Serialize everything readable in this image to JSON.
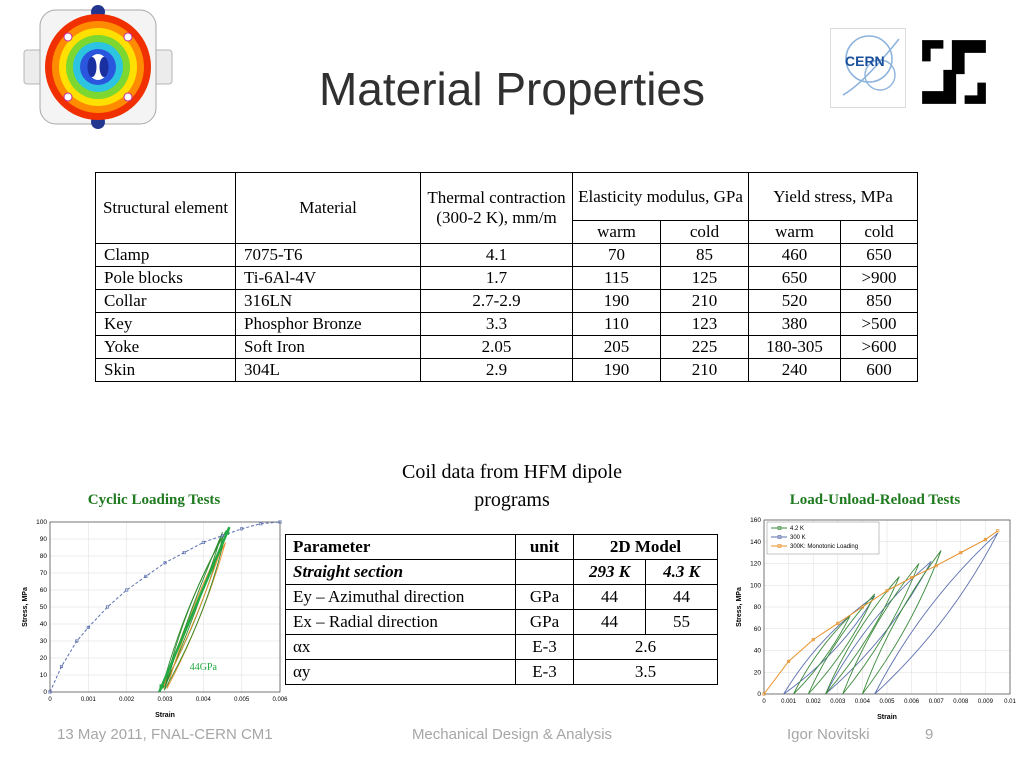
{
  "slide": {
    "title": "Material Properties",
    "coil_note": "Coil data from HFM dipole programs",
    "footer": {
      "left": "13 May 2011, FNAL-CERN CM1",
      "center": "Mechanical Design & Analysis",
      "author": "Igor Novitski",
      "page": "9"
    },
    "logos": {
      "cern_label": "CERN"
    },
    "colors": {
      "chart_title_green": "#1e7a1e",
      "footer_gray": "#a6a6a6",
      "arrow_green": "#22aa44"
    }
  },
  "materials_table": {
    "header": {
      "structural_element": "Structural element",
      "material": "Material",
      "thermal": "Thermal contraction (300-2 K), mm/m",
      "elasticity": "Elasticity modulus, GPa",
      "yield": "Yield stress, MPa"
    },
    "subheader": [
      "warm",
      "cold",
      "warm",
      "cold"
    ],
    "rows": [
      [
        "Clamp",
        "7075-T6",
        "4.1",
        "70",
        "85",
        "460",
        "650"
      ],
      [
        "Pole blocks",
        "Ti-6Al-4V",
        "1.7",
        "115",
        "125",
        "650",
        ">900"
      ],
      [
        "Collar",
        "316LN",
        "2.7-2.9",
        "190",
        "210",
        "520",
        "850"
      ],
      [
        "Key",
        "Phosphor Bronze",
        "3.3",
        "110",
        "123",
        "380",
        ">500"
      ],
      [
        "Yoke",
        "Soft Iron",
        "2.05",
        "205",
        "225",
        "180-305",
        ">600"
      ],
      [
        "Skin",
        "304L",
        "2.9",
        "190",
        "210",
        "240",
        "600"
      ]
    ]
  },
  "parameter_table": {
    "headers": [
      "Parameter",
      "unit",
      "2D Model"
    ],
    "section_label": "Straight section",
    "temp_columns": [
      "293 K",
      "4.3 K"
    ],
    "rows": [
      {
        "param": "Ey – Azimuthal direction",
        "unit": "GPa",
        "v1": "44",
        "v2": "44"
      },
      {
        "param": "Ex – Radial direction",
        "unit": "GPa",
        "v1": "44",
        "v2": "55"
      },
      {
        "param": "αx",
        "unit": "E-3",
        "v1": "2.6"
      },
      {
        "param": "αy",
        "unit": "E-3",
        "v1": "3.5"
      }
    ]
  },
  "chart_data": [
    {
      "type": "line",
      "title": "Cyclic Loading Tests",
      "xlabel": "Strain",
      "ylabel": "Stress, MPa",
      "xlim": [
        0,
        0.006
      ],
      "ylim": [
        0,
        100
      ],
      "xtick_step": 0.001,
      "ytick_step": 10,
      "grid": true,
      "series": [
        {
          "name": "loading curve",
          "color": "#5b6fae",
          "dash": true,
          "marker": true,
          "x": [
            0,
            0.0003,
            0.0007,
            0.001,
            0.0015,
            0.002,
            0.0025,
            0.003,
            0.0035,
            0.004,
            0.0045,
            0.005,
            0.0055,
            0.006
          ],
          "y": [
            0,
            15,
            30,
            38,
            50,
            60,
            68,
            76,
            82,
            88,
            92,
            96,
            99,
            100
          ]
        }
      ],
      "loops": [
        {
          "color": "#2e8b2e",
          "from": [
            0.00292,
            2
          ],
          "to": [
            0.00452,
            92
          ],
          "w": 10
        },
        {
          "color": "#e8922a",
          "from": [
            0.00295,
            2
          ],
          "to": [
            0.00455,
            90
          ],
          "w": 6
        },
        {
          "color": "#2e8b2e",
          "from": [
            0.003,
            3
          ],
          "to": [
            0.0045,
            94
          ],
          "w": 4
        },
        {
          "color": "#e8922a",
          "from": [
            0.00305,
            2
          ],
          "to": [
            0.00458,
            88
          ],
          "w": 8
        },
        {
          "color": "#2e8b2e",
          "from": [
            0.00298,
            1
          ],
          "to": [
            0.0046,
            95
          ],
          "w": 13
        }
      ],
      "arrow": {
        "color": "#22aa44",
        "from": [
          0.00285,
          0
        ],
        "to": [
          0.00468,
          97
        ]
      },
      "annotation": {
        "text": "44GPa",
        "color": "#22aa44",
        "x": 0.004,
        "y": 13
      }
    },
    {
      "type": "line",
      "title": "Load-Unload-Reload Tests",
      "xlabel": "Strain",
      "ylabel": "Stress, MPa",
      "xlim": [
        0,
        0.01
      ],
      "ylim": [
        0,
        160
      ],
      "xtick_step": 0.001,
      "ytick_step": 20,
      "grid": true,
      "legend": [
        {
          "label": "4.2 K",
          "color": "#3a8a3a"
        },
        {
          "label": "300 K",
          "color": "#5b6fae"
        },
        {
          "label": "300K: Monotonic Loading",
          "color": "#e8922a"
        }
      ],
      "series": [
        {
          "name": "300K: Monotonic Loading",
          "color": "#e8922a",
          "marker": true,
          "x": [
            0,
            0.001,
            0.002,
            0.003,
            0.004,
            0.005,
            0.006,
            0.007,
            0.008,
            0.009,
            0.0095
          ],
          "y": [
            0,
            30,
            50,
            65,
            80,
            95,
            107,
            118,
            130,
            142,
            150
          ]
        }
      ],
      "loops": [
        {
          "color": "#5b6fae",
          "from": [
            0.0008,
            0
          ],
          "to": [
            0.0045,
            90
          ],
          "w": 14
        },
        {
          "color": "#5b6fae",
          "from": [
            0.0025,
            0
          ],
          "to": [
            0.0068,
            122
          ],
          "w": 16
        },
        {
          "color": "#5b6fae",
          "from": [
            0.0045,
            0
          ],
          "to": [
            0.0095,
            148
          ],
          "w": 18
        },
        {
          "color": "#3a8a3a",
          "from": [
            0.0012,
            0
          ],
          "to": [
            0.0035,
            72
          ],
          "w": 8
        },
        {
          "color": "#3a8a3a",
          "from": [
            0.0018,
            0
          ],
          "to": [
            0.0045,
            92
          ],
          "w": 10
        },
        {
          "color": "#3a8a3a",
          "from": [
            0.0025,
            0
          ],
          "to": [
            0.0055,
            108
          ],
          "w": 11
        },
        {
          "color": "#3a8a3a",
          "from": [
            0.0032,
            0
          ],
          "to": [
            0.0063,
            120
          ],
          "w": 12
        },
        {
          "color": "#3a8a3a",
          "from": [
            0.004,
            0
          ],
          "to": [
            0.0072,
            132
          ],
          "w": 12
        }
      ]
    }
  ]
}
